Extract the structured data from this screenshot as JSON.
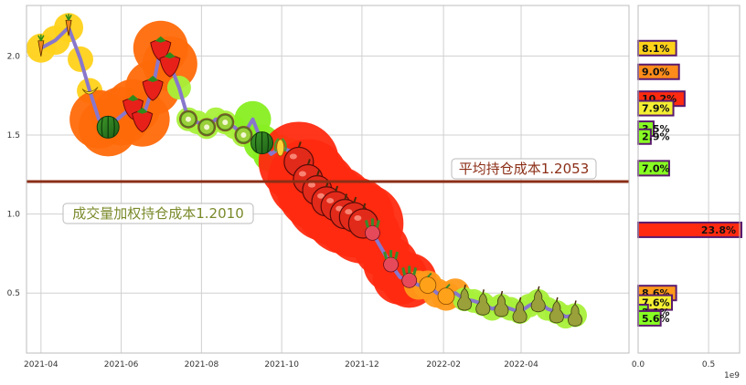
{
  "chart_data": [
    {
      "type": "line",
      "title": "",
      "xlabel": "",
      "ylabel": "",
      "x_ticks": [
        "2021-04",
        "2021-06",
        "2021-08",
        "2021-10",
        "2021-12",
        "2022-02",
        "2022-04"
      ],
      "y_ticks": [
        "0.5",
        "1.0",
        "1.5",
        "2.0"
      ],
      "ylim": [
        0.12,
        2.32
      ],
      "xlim": [
        "2021-03-21",
        "2022-06-22"
      ],
      "grid": true,
      "series": [
        {
          "line_color": "#8877cc",
          "x": [
            "2021-04-01",
            "2021-04-12",
            "2021-04-22",
            "2021-05-01",
            "2021-05-08",
            "2021-05-15",
            "2021-05-22",
            "2021-06-01",
            "2021-06-10",
            "2021-06-17",
            "2021-06-25",
            "2021-07-01",
            "2021-07-08",
            "2021-07-15",
            "2021-07-22",
            "2021-07-29",
            "2021-08-05",
            "2021-08-12",
            "2021-08-19",
            "2021-08-26",
            "2021-09-02",
            "2021-09-09",
            "2021-09-16",
            "2021-09-23",
            "2021-09-30",
            "2021-10-07",
            "2021-10-14",
            "2021-10-21",
            "2021-10-28",
            "2021-11-04",
            "2021-11-11",
            "2021-11-18",
            "2021-11-25",
            "2021-12-02",
            "2021-12-09",
            "2021-12-16",
            "2021-12-23",
            "2021-12-30",
            "2022-01-06",
            "2022-01-13",
            "2022-01-20",
            "2022-01-27",
            "2022-02-03",
            "2022-02-10",
            "2022-02-17",
            "2022-02-24",
            "2022-03-03",
            "2022-03-10",
            "2022-03-17",
            "2022-03-24",
            "2022-03-31",
            "2022-04-07",
            "2022-04-14",
            "2022-04-21",
            "2022-04-28",
            "2022-05-05",
            "2022-05-12"
          ],
          "values": [
            2.05,
            2.1,
            2.18,
            1.98,
            1.78,
            1.6,
            1.55,
            1.62,
            1.68,
            1.6,
            1.8,
            2.05,
            1.95,
            1.8,
            1.6,
            1.58,
            1.55,
            1.6,
            1.58,
            1.55,
            1.5,
            1.6,
            1.45,
            1.38,
            1.42,
            1.4,
            1.33,
            1.22,
            1.15,
            1.08,
            1.05,
            1.0,
            0.98,
            0.94,
            0.88,
            0.78,
            0.68,
            0.6,
            0.58,
            0.55,
            0.55,
            0.5,
            0.48,
            0.5,
            0.46,
            0.45,
            0.43,
            0.4,
            0.42,
            0.4,
            0.38,
            0.42,
            0.45,
            0.4,
            0.38,
            0.35,
            0.36
          ],
          "fruits": [
            "carrot",
            "carrot",
            "carrot",
            "banana",
            "banana",
            "watermelon",
            "watermelon",
            "watermelon",
            "strawberry",
            "strawberry",
            "strawberry",
            "strawberry",
            "strawberry",
            "kiwi",
            "kiwi",
            "kiwi",
            "kiwi",
            "kiwi",
            "kiwi",
            "kiwi",
            "kiwi",
            "watermelon",
            "watermelon",
            "watermelon",
            "corn",
            "corn",
            "apple",
            "apple",
            "apple",
            "apple",
            "apple",
            "apple",
            "apple",
            "apple",
            "radish",
            "radish",
            "radish",
            "radish",
            "radish",
            "orange",
            "orange",
            "orange",
            "orange",
            "orange",
            "pear",
            "pear",
            "pear",
            "pear",
            "pear",
            "pear",
            "pear",
            "pear",
            "pear",
            "pear",
            "pear",
            "pear",
            "pear"
          ]
        }
      ],
      "reference_line": {
        "value": 1.2053,
        "color": "#8b2e16"
      },
      "annotations": [
        {
          "text": "平均持仓成本1.2053",
          "color": "#8b2e16"
        },
        {
          "text": "成交量加权持仓成本1.2010",
          "color": "#7a8a2a"
        }
      ]
    },
    {
      "type": "bar",
      "orientation": "horizontal",
      "xlim": [
        0,
        0.72
      ],
      "x_ticks": [
        "0.0",
        "0.5"
      ],
      "x_scale_label": "1e9",
      "price_axis_shared": true,
      "bars": [
        {
          "price": 2.05,
          "value": 0.27,
          "label": "8.1%",
          "color": "#ffd21a"
        },
        {
          "price": 1.9,
          "value": 0.29,
          "label": "9.0%",
          "color": "#ff8c1a"
        },
        {
          "price": 1.73,
          "value": 0.33,
          "label": "10.2%",
          "color": "#ff2a10"
        },
        {
          "price": 1.67,
          "value": 0.25,
          "label": "7.9%",
          "color": "#f5f032"
        },
        {
          "price": 1.54,
          "value": 0.11,
          "label": "3.5%",
          "color": "#88ff22"
        },
        {
          "price": 1.49,
          "value": 0.09,
          "label": "2.9%",
          "color": "#88ff22"
        },
        {
          "price": 1.29,
          "value": 0.22,
          "label": "7.0%",
          "color": "#88ff22"
        },
        {
          "price": 0.9,
          "value": 0.75,
          "label": "23.8%",
          "color": "#ff2a10"
        },
        {
          "price": 0.5,
          "value": 0.27,
          "label": "8.6%",
          "color": "#ff9a1a"
        },
        {
          "price": 0.44,
          "value": 0.24,
          "label": "7.6%",
          "color": "#f5f032"
        },
        {
          "price": 0.38,
          "value": 0.07,
          "label": "2.1%",
          "color": "#88ff22"
        },
        {
          "price": 0.34,
          "value": 0.16,
          "label": "5.6%",
          "color": "#88ff22"
        }
      ],
      "bar_edge_color": "#5a1a6e"
    }
  ]
}
